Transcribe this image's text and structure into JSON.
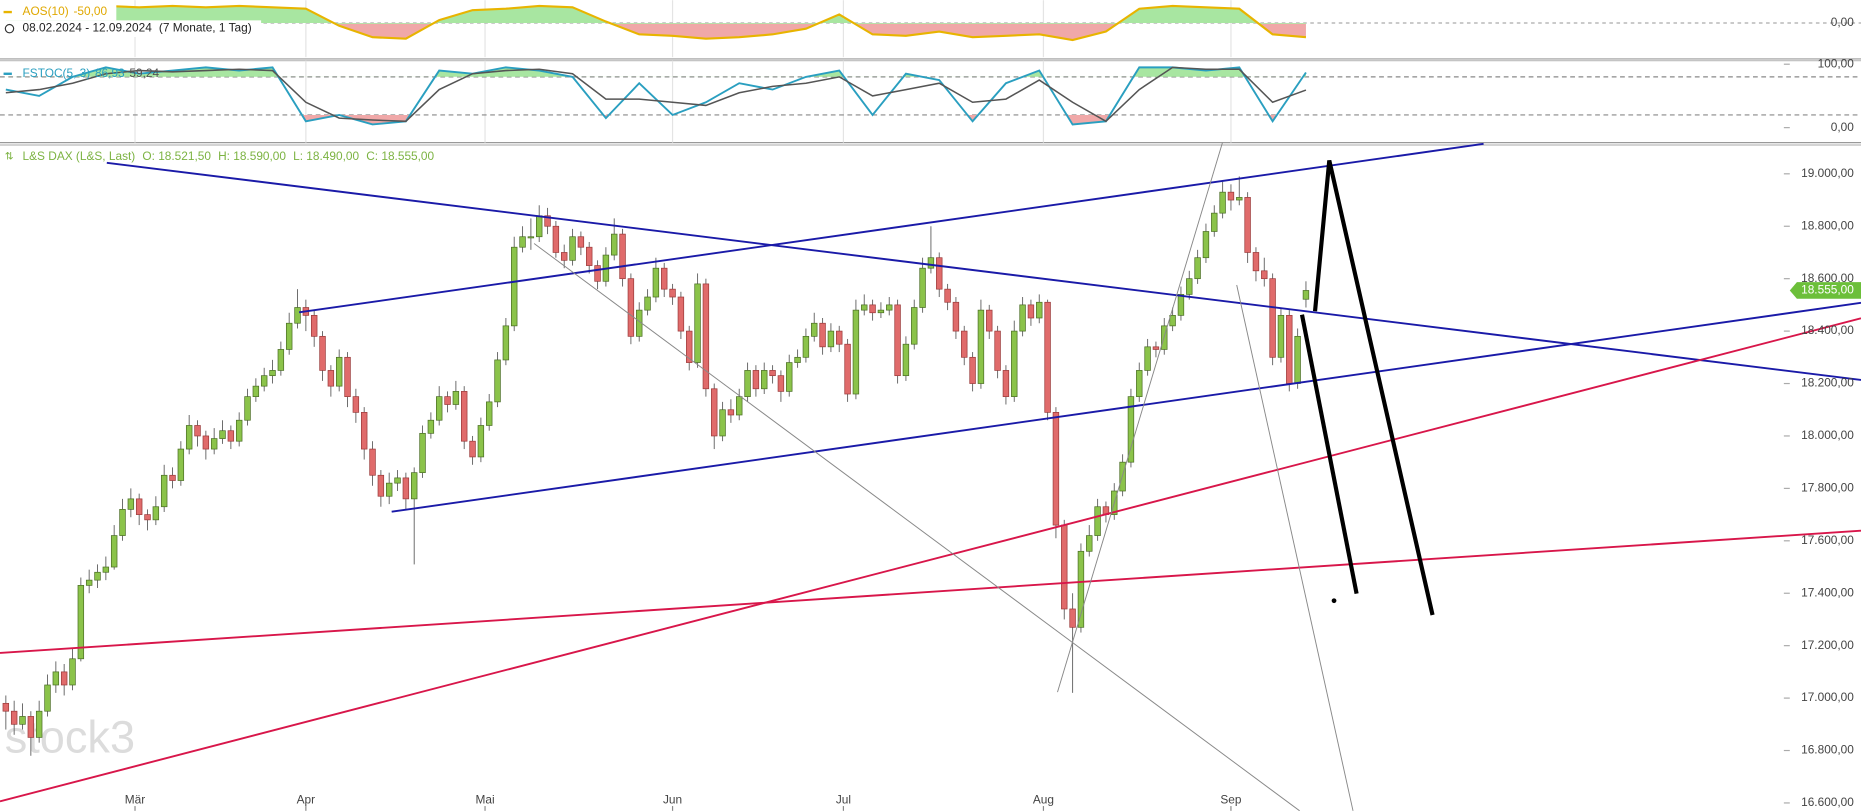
{
  "header": {
    "date_range": "08.02.2024 - 12.09.2024",
    "duration": "(7 Monate, 1 Tag)"
  },
  "chart_data": [
    {
      "type": "area",
      "title": "AOS(10)",
      "value_label": "-50,00",
      "color": "#e8b400",
      "fill_colors": [
        "#a8e6a1",
        "#f0a8a8"
      ],
      "xlim": [
        -0.7,
        222.6
      ],
      "ylim": [
        -120,
        80
      ],
      "yticks": [
        {
          "value": 0,
          "label": "0,00"
        }
      ],
      "x": [
        0,
        4,
        8,
        12,
        16,
        20,
        24,
        28,
        32,
        36,
        40,
        44,
        48,
        52,
        56,
        60,
        64,
        68,
        72,
        76,
        80,
        84,
        88,
        92,
        96,
        100,
        104,
        108,
        112,
        116,
        120,
        124,
        128,
        132,
        136,
        140,
        144,
        148,
        152,
        156
      ],
      "values": [
        40,
        45,
        50,
        60,
        55,
        60,
        55,
        60,
        55,
        50,
        -10,
        -50,
        -55,
        10,
        45,
        50,
        60,
        55,
        5,
        -40,
        -45,
        -55,
        -50,
        -40,
        -20,
        30,
        -40,
        -45,
        -30,
        -50,
        -45,
        -40,
        -60,
        -30,
        50,
        60,
        55,
        50,
        -40,
        -50
      ]
    },
    {
      "type": "line",
      "title": "FSTOC(5, 3)",
      "levels": [
        80,
        20
      ],
      "level_fills": [
        "#a8e6a1",
        "#f0a8a8"
      ],
      "xlim": [
        -0.7,
        222.6
      ],
      "ylim": [
        -23.6,
        105.5
      ],
      "yticks": [
        {
          "value": 100,
          "label": "100,00"
        },
        {
          "value": 0,
          "label": "0,00"
        }
      ],
      "x": [
        0,
        4,
        8,
        12,
        16,
        20,
        24,
        28,
        32,
        36,
        40,
        44,
        48,
        52,
        56,
        60,
        64,
        68,
        72,
        76,
        80,
        84,
        88,
        92,
        96,
        100,
        104,
        108,
        112,
        116,
        120,
        124,
        128,
        132,
        136,
        140,
        144,
        148,
        152,
        156
      ],
      "series": [
        {
          "color": "#2a9fc0",
          "value_label": "86,93",
          "values": [
            60,
            50,
            80,
            95,
            85,
            90,
            95,
            90,
            95,
            10,
            20,
            5,
            10,
            90,
            85,
            95,
            90,
            80,
            15,
            70,
            20,
            40,
            70,
            60,
            80,
            90,
            20,
            85,
            75,
            10,
            70,
            90,
            5,
            10,
            95,
            95,
            90,
            95,
            10,
            86.93
          ]
        },
        {
          "color": "#555555",
          "value_label": "59,24",
          "values": [
            55,
            60,
            70,
            85,
            90,
            88,
            90,
            92,
            90,
            40,
            15,
            12,
            10,
            60,
            85,
            90,
            92,
            85,
            45,
            45,
            40,
            35,
            55,
            65,
            70,
            80,
            50,
            60,
            70,
            40,
            45,
            75,
            40,
            10,
            60,
            95,
            92,
            92,
            40,
            59.24
          ]
        }
      ]
    },
    {
      "type": "candlestick",
      "title": "L&S DAX (L&S, Last)",
      "ohlc_label": [
        "O: 18.521,50",
        "H: 18.590,00",
        "L: 18.490,00",
        "C: 18.555,00"
      ],
      "last_label": "18.555,00",
      "watermark": "stock3",
      "colors": {
        "up": "#8bc34a",
        "down": "#e06b6b"
      },
      "xlim": [
        -0.7,
        222.6
      ],
      "ylim": [
        16570,
        19110
      ],
      "xticks": [
        {
          "value": 15.5,
          "label": "Mär"
        },
        {
          "value": 36,
          "label": "Apr"
        },
        {
          "value": 57.5,
          "label": "Mai"
        },
        {
          "value": 80,
          "label": "Jun"
        },
        {
          "value": 100.5,
          "label": "Jul"
        },
        {
          "value": 124.5,
          "label": "Aug"
        },
        {
          "value": 147,
          "label": "Sep"
        }
      ],
      "yticks": [
        {
          "value": 16600,
          "label": "16.600,00"
        },
        {
          "value": 16800,
          "label": "16.800,00"
        },
        {
          "value": 17000,
          "label": "17.000,00"
        },
        {
          "value": 17200,
          "label": "17.200,00"
        },
        {
          "value": 17400,
          "label": "17.400,00"
        },
        {
          "value": 17600,
          "label": "17.600,00"
        },
        {
          "value": 17800,
          "label": "17.800,00"
        },
        {
          "value": 18000,
          "label": "18.000,00"
        },
        {
          "value": 18200,
          "label": "18.200,00"
        },
        {
          "value": 18400,
          "label": "18.400,00"
        },
        {
          "value": 18600,
          "label": "18.600,00"
        },
        {
          "value": 18800,
          "label": "18.800,00"
        },
        {
          "value": 19000,
          "label": "19.000,00"
        }
      ],
      "ohlc": [
        [
          16980,
          17010,
          16880,
          16950
        ],
        [
          16950,
          16990,
          16860,
          16900
        ],
        [
          16900,
          16980,
          16880,
          16930
        ],
        [
          16930,
          16950,
          16780,
          16850
        ],
        [
          16850,
          16990,
          16830,
          16950
        ],
        [
          16950,
          17090,
          16930,
          17050
        ],
        [
          17050,
          17140,
          17020,
          17100
        ],
        [
          17100,
          17130,
          17010,
          17050
        ],
        [
          17050,
          17190,
          17030,
          17150
        ],
        [
          17150,
          17460,
          17140,
          17430
        ],
        [
          17430,
          17490,
          17400,
          17450
        ],
        [
          17450,
          17510,
          17420,
          17480
        ],
        [
          17480,
          17540,
          17450,
          17500
        ],
        [
          17500,
          17660,
          17490,
          17620
        ],
        [
          17620,
          17760,
          17600,
          17720
        ],
        [
          17720,
          17800,
          17690,
          17760
        ],
        [
          17760,
          17780,
          17660,
          17700
        ],
        [
          17700,
          17720,
          17640,
          17680
        ],
        [
          17680,
          17770,
          17660,
          17730
        ],
        [
          17730,
          17890,
          17710,
          17850
        ],
        [
          17850,
          17880,
          17800,
          17830
        ],
        [
          17830,
          17980,
          17810,
          17950
        ],
        [
          17950,
          18080,
          17930,
          18040
        ],
        [
          18040,
          18060,
          17960,
          18000
        ],
        [
          18000,
          18020,
          17910,
          17950
        ],
        [
          17950,
          18030,
          17930,
          17990
        ],
        [
          17990,
          18060,
          17970,
          18020
        ],
        [
          18020,
          18040,
          17950,
          17980
        ],
        [
          17980,
          18090,
          17960,
          18060
        ],
        [
          18060,
          18180,
          18040,
          18150
        ],
        [
          18150,
          18220,
          18130,
          18190
        ],
        [
          18190,
          18260,
          18170,
          18230
        ],
        [
          18230,
          18290,
          18200,
          18250
        ],
        [
          18250,
          18360,
          18230,
          18330
        ],
        [
          18330,
          18470,
          18310,
          18430
        ],
        [
          18430,
          18560,
          18410,
          18490
        ],
        [
          18490,
          18520,
          18400,
          18460
        ],
        [
          18460,
          18480,
          18340,
          18380
        ],
        [
          18380,
          18400,
          18210,
          18250
        ],
        [
          18250,
          18270,
          18150,
          18190
        ],
        [
          18190,
          18330,
          18170,
          18300
        ],
        [
          18300,
          18320,
          18110,
          18150
        ],
        [
          18150,
          18180,
          18050,
          18090
        ],
        [
          18090,
          18110,
          17910,
          17950
        ],
        [
          17950,
          17980,
          17810,
          17850
        ],
        [
          17850,
          17870,
          17730,
          17770
        ],
        [
          17770,
          17860,
          17740,
          17820
        ],
        [
          17820,
          17870,
          17790,
          17840
        ],
        [
          17840,
          17860,
          17720,
          17760
        ],
        [
          17760,
          17880,
          17510,
          17860
        ],
        [
          17860,
          18040,
          17840,
          18010
        ],
        [
          18010,
          18090,
          17990,
          18060
        ],
        [
          18060,
          18190,
          18040,
          18150
        ],
        [
          18150,
          18170,
          18090,
          18120
        ],
        [
          18120,
          18210,
          18100,
          18170
        ],
        [
          18170,
          18190,
          17950,
          17980
        ],
        [
          17980,
          18000,
          17890,
          17920
        ],
        [
          17920,
          18070,
          17900,
          18040
        ],
        [
          18040,
          18160,
          18020,
          18130
        ],
        [
          18130,
          18320,
          18110,
          18290
        ],
        [
          18290,
          18450,
          18270,
          18420
        ],
        [
          18420,
          18760,
          18400,
          18720
        ],
        [
          18720,
          18800,
          18700,
          18760
        ],
        [
          18760,
          18830,
          18710,
          18760
        ],
        [
          18760,
          18880,
          18740,
          18840
        ],
        [
          18840,
          18870,
          18770,
          18800
        ],
        [
          18800,
          18820,
          18680,
          18700
        ],
        [
          18700,
          18730,
          18640,
          18670
        ],
        [
          18670,
          18790,
          18650,
          18760
        ],
        [
          18760,
          18780,
          18690,
          18720
        ],
        [
          18720,
          18740,
          18620,
          18650
        ],
        [
          18650,
          18670,
          18560,
          18590
        ],
        [
          18590,
          18720,
          18570,
          18690
        ],
        [
          18690,
          18830,
          18670,
          18770
        ],
        [
          18770,
          18790,
          18570,
          18600
        ],
        [
          18600,
          18620,
          18350,
          18380
        ],
        [
          18380,
          18510,
          18360,
          18480
        ],
        [
          18480,
          18560,
          18460,
          18530
        ],
        [
          18530,
          18680,
          18510,
          18640
        ],
        [
          18640,
          18660,
          18530,
          18560
        ],
        [
          18560,
          18580,
          18500,
          18530
        ],
        [
          18530,
          18550,
          18370,
          18400
        ],
        [
          18400,
          18420,
          18250,
          18280
        ],
        [
          18280,
          18620,
          18260,
          18580
        ],
        [
          18580,
          18600,
          18150,
          18180
        ],
        [
          18180,
          18200,
          17950,
          18000
        ],
        [
          18000,
          18130,
          17980,
          18100
        ],
        [
          18100,
          18140,
          18050,
          18080
        ],
        [
          18080,
          18180,
          18060,
          18150
        ],
        [
          18150,
          18280,
          18130,
          18250
        ],
        [
          18250,
          18270,
          18150,
          18180
        ],
        [
          18180,
          18280,
          18160,
          18250
        ],
        [
          18250,
          18270,
          18200,
          18230
        ],
        [
          18230,
          18250,
          18130,
          18170
        ],
        [
          18170,
          18310,
          18150,
          18280
        ],
        [
          18280,
          18330,
          18260,
          18300
        ],
        [
          18300,
          18410,
          18280,
          18380
        ],
        [
          18380,
          18470,
          18360,
          18430
        ],
        [
          18430,
          18450,
          18310,
          18340
        ],
        [
          18340,
          18430,
          18320,
          18400
        ],
        [
          18400,
          18420,
          18320,
          18350
        ],
        [
          18350,
          18370,
          18130,
          18160
        ],
        [
          18160,
          18520,
          18140,
          18480
        ],
        [
          18480,
          18540,
          18460,
          18500
        ],
        [
          18500,
          18520,
          18440,
          18470
        ],
        [
          18470,
          18510,
          18450,
          18480
        ],
        [
          18480,
          18530,
          18460,
          18500
        ],
        [
          18500,
          18520,
          18200,
          18230
        ],
        [
          18230,
          18380,
          18210,
          18350
        ],
        [
          18350,
          18520,
          18330,
          18490
        ],
        [
          18490,
          18680,
          18470,
          18640
        ],
        [
          18640,
          18800,
          18620,
          18680
        ],
        [
          18680,
          18700,
          18530,
          18560
        ],
        [
          18560,
          18580,
          18480,
          18510
        ],
        [
          18510,
          18530,
          18370,
          18400
        ],
        [
          18400,
          18420,
          18270,
          18300
        ],
        [
          18300,
          18320,
          18170,
          18200
        ],
        [
          18200,
          18520,
          18180,
          18480
        ],
        [
          18480,
          18500,
          18370,
          18400
        ],
        [
          18400,
          18420,
          18220,
          18250
        ],
        [
          18250,
          18270,
          18120,
          18150
        ],
        [
          18150,
          18440,
          18130,
          18400
        ],
        [
          18400,
          18530,
          18380,
          18500
        ],
        [
          18500,
          18520,
          18420,
          18450
        ],
        [
          18450,
          18540,
          18430,
          18510
        ],
        [
          18510,
          18520,
          18060,
          18090
        ],
        [
          18090,
          18110,
          17610,
          17660
        ],
        [
          17660,
          17680,
          17300,
          17340
        ],
        [
          17340,
          17400,
          17020,
          17270
        ],
        [
          17270,
          17590,
          17250,
          17560
        ],
        [
          17560,
          17660,
          17540,
          17620
        ],
        [
          17620,
          17760,
          17600,
          17730
        ],
        [
          17730,
          17750,
          17670,
          17700
        ],
        [
          17700,
          17820,
          17680,
          17790
        ],
        [
          17790,
          17930,
          17770,
          17900
        ],
        [
          17900,
          18180,
          17880,
          18150
        ],
        [
          18150,
          18280,
          18130,
          18250
        ],
        [
          18250,
          18370,
          18230,
          18340
        ],
        [
          18340,
          18360,
          18300,
          18330
        ],
        [
          18330,
          18450,
          18310,
          18420
        ],
        [
          18420,
          18490,
          18400,
          18460
        ],
        [
          18460,
          18570,
          18440,
          18540
        ],
        [
          18540,
          18630,
          18520,
          18600
        ],
        [
          18600,
          18710,
          18580,
          18680
        ],
        [
          18680,
          18810,
          18660,
          18780
        ],
        [
          18780,
          18880,
          18760,
          18850
        ],
        [
          18850,
          18970,
          18830,
          18930
        ],
        [
          18930,
          18960,
          18860,
          18900
        ],
        [
          18900,
          18990,
          18880,
          18910
        ],
        [
          18910,
          18930,
          18660,
          18700
        ],
        [
          18700,
          18720,
          18590,
          18630
        ],
        [
          18630,
          18680,
          18570,
          18600
        ],
        [
          18600,
          18620,
          18270,
          18300
        ],
        [
          18300,
          18490,
          18280,
          18460
        ],
        [
          18460,
          18480,
          18170,
          18200
        ],
        [
          18200,
          18410,
          18180,
          18380
        ],
        [
          18521.5,
          18590,
          18490,
          18555
        ]
      ]
    }
  ]
}
